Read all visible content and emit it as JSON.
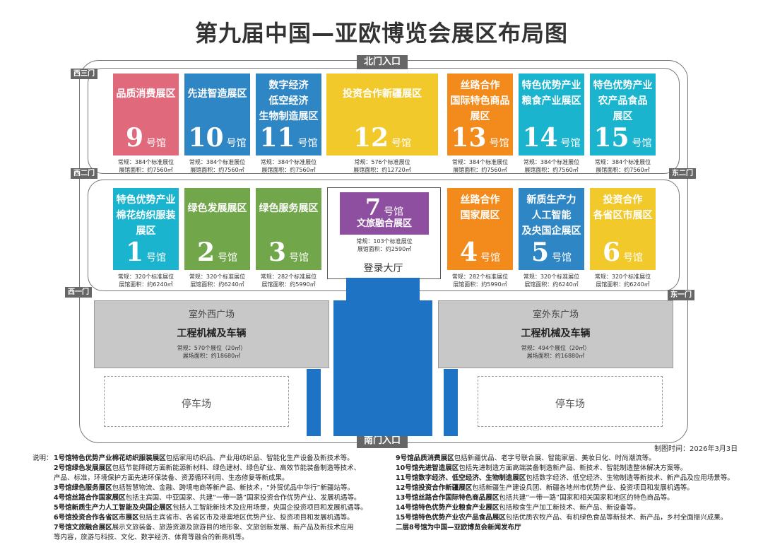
{
  "title": "第九届中国—亚欧博览会展区布局图",
  "gates": {
    "north": "北门入口",
    "south": "南门入口",
    "west3": "西三门",
    "west2": "西二门",
    "west1": "西一门",
    "east2": "东二门",
    "east1": "东一门"
  },
  "hall_word": "号馆",
  "north_halls": [
    {
      "num": "9",
      "name": [
        "品质消费展区"
      ],
      "color": "#e06a7c",
      "booths": "常规：384个标准展位",
      "area": "展馆面积：约7560㎡"
    },
    {
      "num": "10",
      "name": [
        "先进智造展区"
      ],
      "color": "#2f86c5",
      "booths": "常规：384个标准展位",
      "area": "展馆面积：约7560㎡"
    },
    {
      "num": "11",
      "name": [
        "数字经济",
        "低空经济",
        "生物制造展区"
      ],
      "color": "#2f86c5",
      "booths": "常规：384个标准展位",
      "area": "展馆面积：约7560㎡"
    },
    {
      "num": "12",
      "name": [
        "投资合作新疆展区"
      ],
      "color": "#f2c92b",
      "booths": "常规：576个标准展位",
      "area": "展馆面积：约12720㎡"
    },
    {
      "num": "13",
      "name": [
        "丝路合作",
        "国际特色商品",
        "展区"
      ],
      "color": "#f28b1c",
      "booths": "常规：384个标准展位",
      "area": "展馆面积：约7560㎡"
    },
    {
      "num": "14",
      "name": [
        "特色优势产业",
        "粮食产业展区"
      ],
      "color": "#1bb4cf",
      "booths": "常规：384个标准展位",
      "area": "展馆面积：约7560㎡"
    },
    {
      "num": "15",
      "name": [
        "特色优势产业",
        "农产品食品",
        "展区"
      ],
      "color": "#1bb4cf",
      "booths": "常规：384个标准展位",
      "area": "展馆面积：约7560㎡"
    }
  ],
  "south_halls": [
    {
      "num": "1",
      "name": [
        "特色优势产业",
        "棉花纺织服装",
        "展区"
      ],
      "color": "#1bb4cf",
      "booths": "常规：320个标准展位",
      "area": "展馆面积：约6240㎡"
    },
    {
      "num": "2",
      "name": [
        "绿色发展展区"
      ],
      "color": "#72a64a",
      "booths": "常规：320个标准展位",
      "area": "展馆面积：约6240㎡"
    },
    {
      "num": "3",
      "name": [
        "绿色服务展区"
      ],
      "color": "#72a64a",
      "booths": "常规：282个标准展位",
      "area": "展馆面积：约5990㎡"
    },
    {
      "num": "4",
      "name": [
        "丝路合作",
        "国家展区"
      ],
      "color": "#f28b1c",
      "booths": "常规：282个标准展位",
      "area": "展馆面积：约5990㎡"
    },
    {
      "num": "5",
      "name": [
        "新质生产力",
        "人工智能",
        "及央国企展区"
      ],
      "color": "#2f86c5",
      "booths": "常规：320个标准展位",
      "area": "展馆面积：约6240㎡"
    },
    {
      "num": "6",
      "name": [
        "投资合作",
        "各省区市展区"
      ],
      "color": "#f2c92b",
      "booths": "常规：320个标准展位",
      "area": "展馆面积：约6240㎡"
    }
  ],
  "hall7": {
    "num": "7",
    "name": "文旅融合展区",
    "color": "#8e4fa0",
    "booths": "常规：103个标准展位",
    "area": "展馆面积：约2590㎡",
    "lobby": "登录大厅"
  },
  "plazas": [
    {
      "title": "室外西广场",
      "name": "工程机械及车辆",
      "booths": "常规：570个展位（20㎡）",
      "area": "展场面积：约18680㎡"
    },
    {
      "title": "室外东广场",
      "name": "工程机械及车辆",
      "booths": "常规：494个展位（20㎡）",
      "area": "展场面积：约16880㎡"
    }
  ],
  "parking": [
    "停车场",
    "停车场"
  ],
  "date": "制图时间：2026年3月3日",
  "legend_label": "说明：",
  "legend_left": [
    {
      "b": "1号馆特色优势产业棉花纺织服装展区",
      "t": "包括家用纺织品、产业用纺织品、智能化生产设备及新技术等。"
    },
    {
      "b": "2号馆绿色发展展区",
      "t": "包括节能降碳方面新能源新材料、绿色建材、绿色矿业、高效节能装备制造等技术、"
    },
    {
      "b": "",
      "t": "产品、标准，环境保护方面先进环保装备、资源循环利用、生态修复等新成果。"
    },
    {
      "b": "3号馆绿色服务展区",
      "t": "包括智慧物流、金融、跨境电商等新产品、新技术，“外贸优品中华行”新疆站等。"
    },
    {
      "b": "4号馆丝路合作国家展区",
      "t": "包括主宾国、中亚国家、共建“一带一路”国家投资合作优势产业、发展机遇等。"
    },
    {
      "b": "5号馆新质生产力人工智能及央国企展区",
      "t": "包括人工智能新技术及应用场景，央国企投资项目和发展机遇等。"
    },
    {
      "b": "6号馆投资合作各省区市展区",
      "t": "包括主宾省市、各省区市及港澳地区优势产业、投资项目和发展机遇等。"
    },
    {
      "b": "7号馆文旅融合展区",
      "t": "展示文旅装备、旅游资源及旅游目的地形象、文旅创新发展、新产品及新技术应用"
    },
    {
      "b": "",
      "t": "等内容，旅游与科技、文化、数字经济、体育等融合的新商机等。"
    }
  ],
  "legend_right": [
    {
      "b": "9号馆品质消费展区",
      "t": "包括新疆优品、老字号联合展、智能家居、美妆日化、时尚潮流等。"
    },
    {
      "b": "10号馆先进智造展区",
      "t": "包括先进制造方面高端装备制造新产品、新技术、智能制造整体解决方案等。"
    },
    {
      "b": "11号馆数字经济、低空经济、生物制造展区",
      "t": "包括数字经济、低空经济、生物制造等新技术、新产品及应用场景等。"
    },
    {
      "b": "12号馆投资合作新疆展区",
      "t": "包括新疆生产建设兵团、新疆各地州市优势产业、投资项目和发展机遇等。"
    },
    {
      "b": "13号馆丝路合作国际特色商品展区",
      "t": "包括共建“一带一路”国家和相关国家和地区的特色商品等。"
    },
    {
      "b": "14号馆特色优势产业粮食产业展区",
      "t": "包括粮食生产加工新技术、新产品、新设备等。"
    },
    {
      "b": "15号馆特色优势产业农产品食品展区",
      "t": "包括优质农牧产品、有机绿色食品等新技术、新产品，乡村全面振兴成果。"
    },
    {
      "b": "二层8号馆为中国—亚欧博览会新闻发布厅",
      "t": ""
    }
  ]
}
